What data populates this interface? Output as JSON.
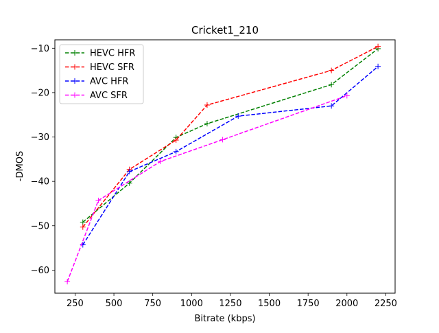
{
  "chart_data": {
    "type": "line",
    "title": "Cricket1_210",
    "xlabel": "Bitrate (kbps)",
    "ylabel": "-DMOS",
    "xlim": [
      120,
      2310
    ],
    "ylim": [
      -65.2,
      -8.1
    ],
    "xticks": [
      250,
      500,
      750,
      1000,
      1250,
      1500,
      1750,
      2000,
      2250
    ],
    "yticks": [
      -60,
      -50,
      -40,
      -30,
      -20,
      -10
    ],
    "grid": false,
    "legend_position": "top-left",
    "series": [
      {
        "name": "HEVC HFR",
        "color": "#008000",
        "x": [
          300,
          600,
          900,
          1100,
          1900,
          2200
        ],
        "y": [
          -49.2,
          -40.4,
          -30.1,
          -27.0,
          -18.2,
          -10.1
        ]
      },
      {
        "name": "HEVC SFR",
        "color": "#ff0000",
        "x": [
          300,
          600,
          900,
          1100,
          1900,
          2200
        ],
        "y": [
          -50.3,
          -37.3,
          -30.7,
          -22.8,
          -15.0,
          -9.6
        ]
      },
      {
        "name": "AVC HFR",
        "color": "#0000ff",
        "x": [
          300,
          600,
          900,
          1300,
          1900,
          2200
        ],
        "y": [
          -54.3,
          -37.8,
          -33.3,
          -25.3,
          -23.0,
          -14.1
        ]
      },
      {
        "name": "AVC SFR",
        "color": "#ff00ff",
        "x": [
          200,
          400,
          800,
          1200,
          2000
        ],
        "y": [
          -62.6,
          -44.3,
          -35.5,
          -30.6,
          -20.7
        ]
      }
    ]
  }
}
